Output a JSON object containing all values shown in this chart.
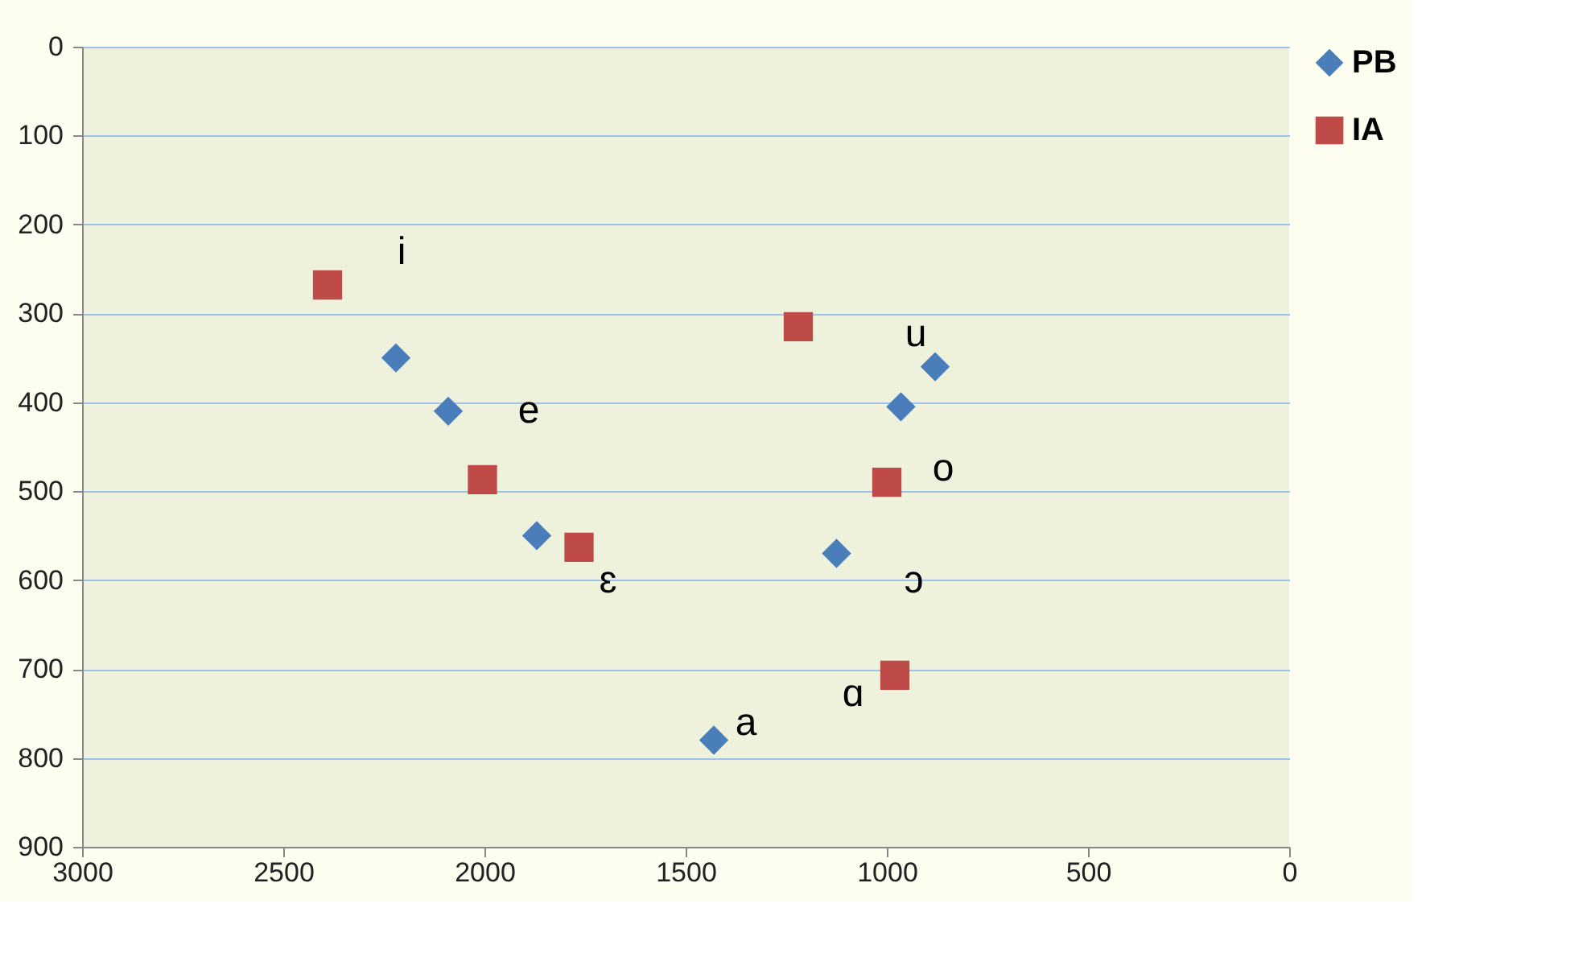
{
  "chart_data": {
    "type": "scatter",
    "xlim": [
      3000,
      0
    ],
    "xticks": [
      3000,
      2500,
      2000,
      1500,
      1000,
      500,
      0
    ],
    "ylim": [
      900,
      0
    ],
    "yticks": [
      0,
      100,
      200,
      300,
      400,
      500,
      600,
      700,
      800,
      900
    ],
    "grid": "y",
    "legend": "right",
    "series": [
      {
        "name": "PB",
        "color": "#4a7ebb",
        "marker": "diamond",
        "x": [
          2220,
          2090,
          1870,
          1430,
          1125,
          965,
          880
        ],
        "values": [
          350,
          410,
          550,
          780,
          570,
          405,
          360
        ]
      },
      {
        "name": "IA",
        "color": "#be4b48",
        "marker": "square",
        "x": [
          2390,
          2005,
          1765,
          1220,
          1000,
          980
        ],
        "values": [
          268,
          487,
          563,
          315,
          490,
          707
        ]
      }
    ],
    "annotations": [
      {
        "text": "i",
        "x": 2390,
        "y": 268
      },
      {
        "text": "e",
        "x": 2090,
        "y": 410
      },
      {
        "text": "ɛ",
        "x": 1765,
        "y": 563
      },
      {
        "text": "u",
        "x": 880,
        "y": 360
      },
      {
        "text": "o",
        "x": 1000,
        "y": 490
      },
      {
        "text": "ɔ",
        "x": 1125,
        "y": 570
      },
      {
        "text": "a",
        "x": 1430,
        "y": 780
      },
      {
        "text": "ɑ",
        "x": 980,
        "y": 707
      }
    ]
  }
}
